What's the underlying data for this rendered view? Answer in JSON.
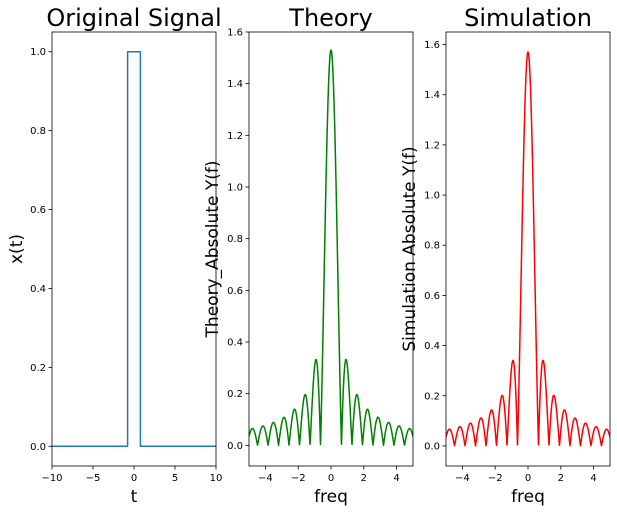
{
  "chart_data": [
    {
      "type": "line",
      "title": "Original Signal",
      "xlabel": "t",
      "ylabel": "x(t)",
      "xlim": [
        -10,
        10
      ],
      "ylim": [
        -0.05,
        1.05
      ],
      "xticks": [
        -10,
        -5,
        0,
        5,
        10
      ],
      "yticks": [
        0.0,
        0.2,
        0.4,
        0.6,
        0.8,
        1.0
      ],
      "xtick_labels": [
        "−10",
        "−5",
        "0",
        "5",
        "10"
      ],
      "ytick_labels": [
        "0.0",
        "0.2",
        "0.4",
        "0.6",
        "0.8",
        "1.0"
      ],
      "grid": false,
      "color": "#1f77b4",
      "series": [
        {
          "x": [
            -10,
            -0.78,
            -0.78,
            0.78,
            0.78,
            10
          ],
          "y": [
            0,
            0,
            1,
            1,
            0,
            0
          ]
        }
      ]
    },
    {
      "type": "line",
      "title": "Theory",
      "xlabel": "freq",
      "ylabel": "Theory_Absolute Y(f)",
      "xlim": [
        -5,
        5
      ],
      "ylim": [
        -0.08,
        1.6
      ],
      "xticks": [
        -4,
        -2,
        0,
        2,
        4
      ],
      "yticks": [
        0.0,
        0.2,
        0.4,
        0.6,
        0.8,
        1.0,
        1.2,
        1.4,
        1.6
      ],
      "xtick_labels": [
        "−4",
        "−2",
        "0",
        "2",
        "4"
      ],
      "ytick_labels": [
        "0.0",
        "0.2",
        "0.4",
        "0.6",
        "0.8",
        "1.0",
        "1.2",
        "1.4",
        "1.6"
      ],
      "grid": false,
      "color": "green",
      "curve": {
        "kind": "abs_sinc",
        "peak": 1.53,
        "first_zero": 0.64,
        "range": [
          -5,
          5
        ]
      }
    },
    {
      "type": "line",
      "title": "Simulation",
      "xlabel": "freq",
      "ylabel": "Simulation Absolute Y(f)",
      "xlim": [
        -5,
        5
      ],
      "ylim": [
        -0.08,
        1.65
      ],
      "xticks": [
        -4,
        -2,
        0,
        2,
        4
      ],
      "yticks": [
        0.0,
        0.2,
        0.4,
        0.6,
        0.8,
        1.0,
        1.2,
        1.4,
        1.6
      ],
      "xtick_labels": [
        "−4",
        "−2",
        "0",
        "2",
        "4"
      ],
      "ytick_labels": [
        "0.0",
        "0.2",
        "0.4",
        "0.6",
        "0.8",
        "1.0",
        "1.2",
        "1.4",
        "1.6"
      ],
      "grid": false,
      "color": "red",
      "curve": {
        "kind": "abs_sinc",
        "peak": 1.57,
        "first_zero": 0.64,
        "range": [
          -5,
          5
        ]
      }
    }
  ]
}
